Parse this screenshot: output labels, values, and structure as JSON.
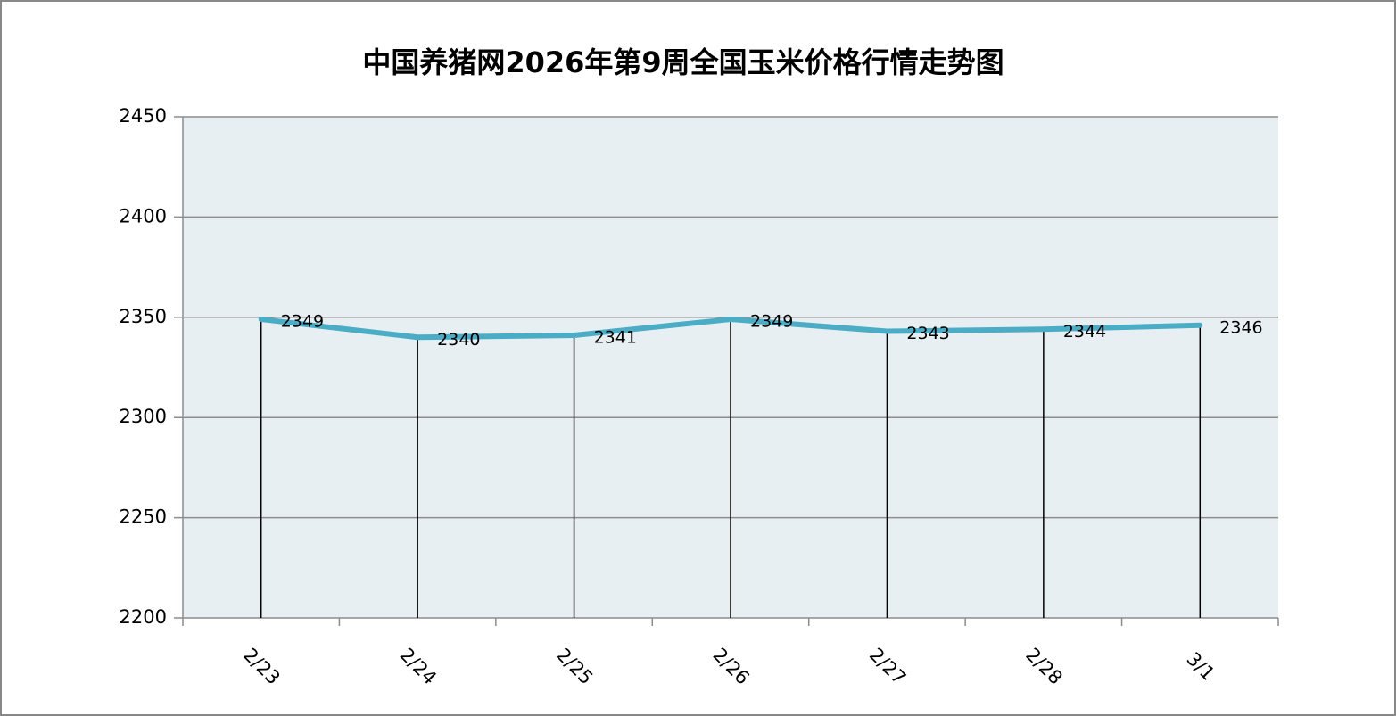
{
  "chart_data": {
    "type": "line",
    "title": "中国养猪网2026年第9周全国玉米价格行情走势图",
    "categories": [
      "2/23",
      "2/24",
      "2/25",
      "2/26",
      "2/27",
      "2/28",
      "3/1"
    ],
    "values": [
      2349,
      2340,
      2341,
      2349,
      2343,
      2344,
      2346
    ],
    "color": "#4bacc6",
    "ylim": [
      2200,
      2450
    ],
    "yticks": [
      2200,
      2250,
      2300,
      2350,
      2400,
      2450
    ],
    "grid": true
  }
}
